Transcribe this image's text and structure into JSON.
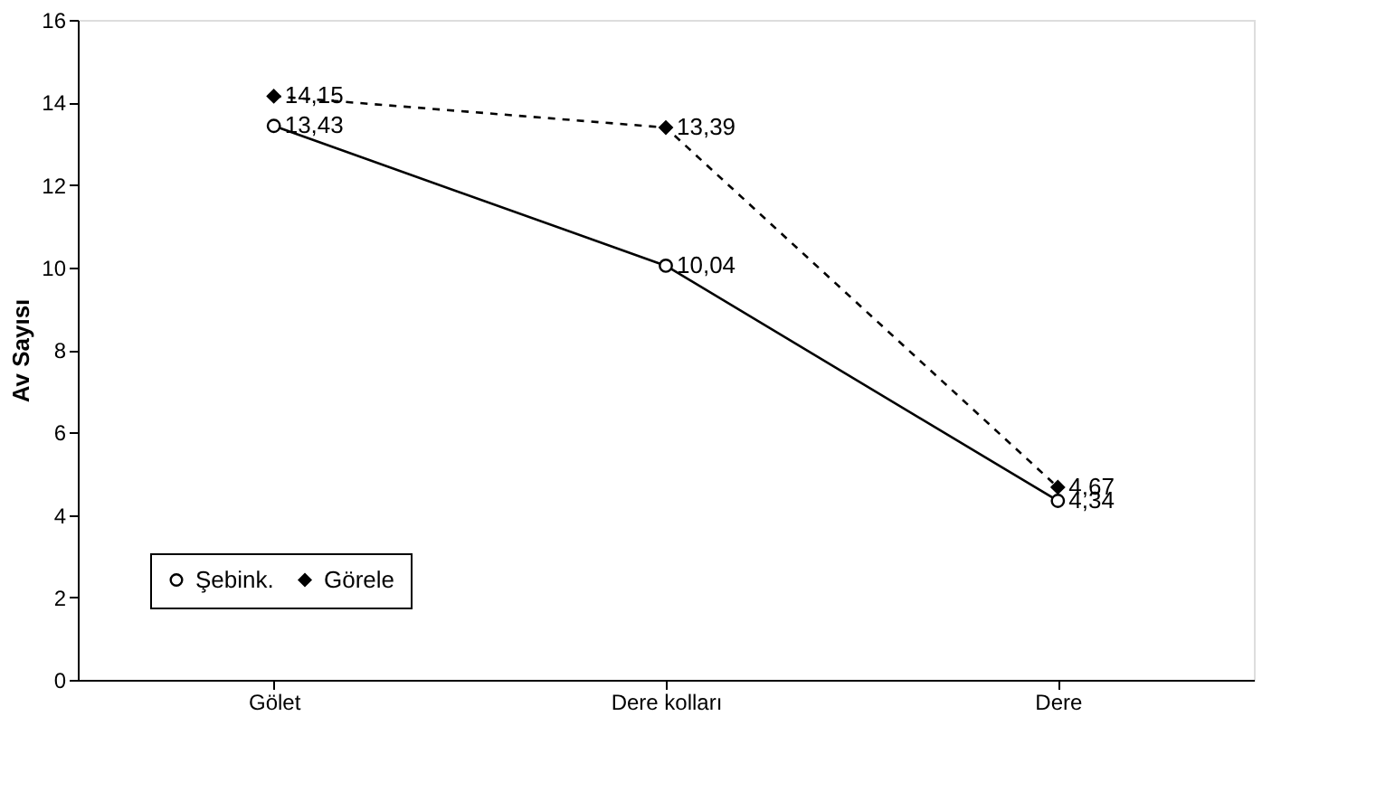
{
  "chart_data": {
    "type": "line",
    "ylabel": "Av Sayısı",
    "categories": [
      "Gölet",
      "Dere kolları",
      "Dere"
    ],
    "series": [
      {
        "name": "Şebink.",
        "color": "#000000",
        "values": [
          13.43,
          10.04,
          4.34
        ],
        "value_labels": [
          "13,43",
          "10,04",
          "4,34"
        ],
        "marker": "circle",
        "line_style": "solid"
      },
      {
        "name": "Görele",
        "color": "#000000",
        "values": [
          14.15,
          13.39,
          4.67
        ],
        "value_labels": [
          "14,15",
          "13,39",
          "4,67"
        ],
        "marker": "diamond",
        "line_style": "dashed"
      }
    ],
    "ylim": [
      0,
      16
    ],
    "yticks": [
      0,
      2,
      4,
      6,
      8,
      10,
      12,
      14,
      16
    ],
    "grid": false,
    "legend": "bottom left"
  }
}
